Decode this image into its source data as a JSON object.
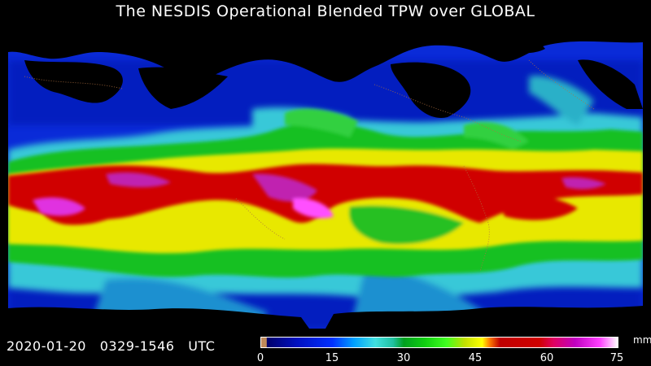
{
  "title": "The NESDIS Operational Blended TPW over GLOBAL",
  "timestamp": "2020-01-20   0329-1546   UTC",
  "colorbar": {
    "unit": "mm",
    "ticks": [
      "0",
      "15",
      "30",
      "45",
      "60",
      "75"
    ],
    "range": [
      0,
      75
    ]
  },
  "colors": {
    "background": "#000000",
    "dry": "#0030ff",
    "moderate": "#40e0e0",
    "moist": "#10d010",
    "wet": "#ffff00",
    "very_wet": "#d00000",
    "extreme": "#ff40ff"
  }
}
